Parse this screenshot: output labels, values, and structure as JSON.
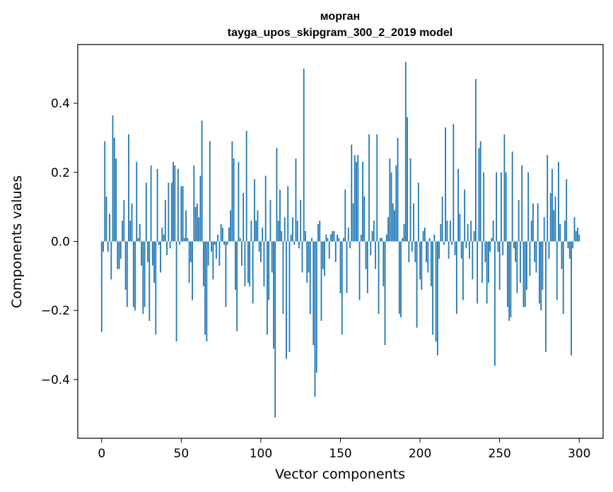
{
  "chart_data": {
    "type": "bar",
    "title_line1": "морган",
    "title_line2": "tayga_upos_skipgram_300_2_2019 model",
    "xlabel": "Vector components",
    "ylabel": "Components values",
    "xlim": [
      -15,
      315
    ],
    "ylim": [
      -0.57,
      0.57
    ],
    "xticks": [
      0,
      50,
      100,
      150,
      200,
      250,
      300
    ],
    "xtick_labels": [
      "0",
      "50",
      "100",
      "150",
      "200",
      "250",
      "300"
    ],
    "yticks": [
      -0.4,
      -0.2,
      0.0,
      0.2,
      0.4
    ],
    "ytick_labels": [
      "−0.4",
      "−0.2",
      "0.0",
      "0.2",
      "0.4"
    ],
    "bar_color": "#1f77b4",
    "values": [
      -0.262,
      -0.03,
      0.29,
      0.13,
      -0.03,
      0.08,
      -0.11,
      0.365,
      0.3,
      0.24,
      -0.08,
      -0.08,
      -0.05,
      0.06,
      0.12,
      -0.14,
      -0.19,
      0.31,
      0.06,
      0.11,
      -0.19,
      -0.2,
      0.23,
      0.01,
      0.05,
      -0.07,
      -0.21,
      -0.19,
      0.17,
      -0.06,
      -0.23,
      0.22,
      -0.07,
      -0.12,
      -0.27,
      0.21,
      -0.01,
      -0.09,
      0.04,
      0.02,
      0.12,
      -0.04,
      0.17,
      -0.02,
      0.17,
      0.23,
      0.22,
      -0.29,
      0.21,
      -0.01,
      0.16,
      0.16,
      0.01,
      0.09,
      0.01,
      -0.12,
      -0.06,
      -0.17,
      0.22,
      0.1,
      0.11,
      0.07,
      0.19,
      0.35,
      -0.13,
      -0.27,
      -0.29,
      -0.07,
      0.29,
      -0.03,
      -0.11,
      -0.01,
      -0.05,
      0.02,
      -0.07,
      0.05,
      0.04,
      -0.01,
      -0.19,
      -0.01,
      0.04,
      0.09,
      0.29,
      0.24,
      -0.14,
      -0.26,
      0.23,
      0.01,
      -0.07,
      0.14,
      -0.13,
      0.32,
      -0.12,
      -0.13,
      0.06,
      -0.18,
      0.18,
      0.06,
      0.09,
      -0.03,
      -0.06,
      0.04,
      -0.13,
      0.19,
      -0.27,
      -0.17,
      0.12,
      -0.09,
      -0.31,
      -0.51,
      0.27,
      0.06,
      0.15,
      0.03,
      -0.21,
      0.07,
      -0.34,
      0.16,
      -0.32,
      0.02,
      0.07,
      -0.01,
      0.24,
      0.06,
      -0.02,
      0.12,
      -0.09,
      0.5,
      0.03,
      -0.12,
      -0.09,
      -0.21,
      0.01,
      -0.3,
      -0.45,
      -0.38,
      0.05,
      0.06,
      -0.23,
      -0.08,
      -0.1,
      0.02,
      0.01,
      -0.05,
      0.02,
      0.03,
      0.03,
      -0.06,
      0.02,
      0.01,
      -0.15,
      -0.27,
      0.01,
      0.15,
      -0.15,
      0.04,
      -0.02,
      0.28,
      0.11,
      0.25,
      0.23,
      0.25,
      -0.17,
      0.02,
      0.23,
      0.13,
      -0.08,
      -0.15,
      0.31,
      -0.04,
      0.03,
      0.06,
      -0.08,
      0.31,
      -0.21,
      0.01,
      0.01,
      -0.13,
      -0.3,
      0.02,
      0.07,
      0.24,
      0.2,
      0.11,
      0.09,
      0.22,
      0.3,
      -0.21,
      -0.22,
      0.01,
      0.05,
      0.52,
      0.36,
      -0.06,
      0.24,
      -0.03,
      0.11,
      -0.06,
      -0.25,
      0.17,
      -0.11,
      -0.14,
      0.03,
      0.04,
      -0.06,
      -0.09,
      0.01,
      -0.13,
      -0.27,
      0.02,
      -0.29,
      -0.33,
      -0.05,
      0.05,
      0.13,
      -0.01,
      0.33,
      0.06,
      -0.05,
      0.06,
      -0.01,
      0.34,
      -0.04,
      -0.21,
      0.21,
      0.08,
      -0.05,
      -0.17,
      0.15,
      -0.02,
      0.05,
      -0.05,
      0.06,
      -0.11,
      0.03,
      0.47,
      -0.18,
      0.27,
      0.29,
      -0.12,
      0.2,
      -0.06,
      -0.18,
      -0.12,
      -0.03,
      0.01,
      0.06,
      -0.36,
      0.2,
      -0.03,
      -0.14,
      0.2,
      -0.04,
      0.31,
      0.2,
      -0.19,
      -0.23,
      -0.22,
      0.26,
      -0.02,
      -0.06,
      -0.15,
      0.12,
      -0.12,
      0.22,
      -0.19,
      -0.19,
      -0.14,
      0.2,
      -0.1,
      0.06,
      0.11,
      -0.06,
      -0.09,
      0.11,
      -0.18,
      -0.2,
      -0.14,
      0.07,
      -0.32,
      0.25,
      -0.05,
      0.14,
      0.21,
      0.09,
      0.13,
      -0.17,
      0.23,
      0.05,
      -0.08,
      -0.21,
      0.06,
      0.18,
      -0.02,
      -0.05,
      -0.33,
      -0.02,
      0.07,
      0.03,
      0.04,
      0.02
    ]
  }
}
